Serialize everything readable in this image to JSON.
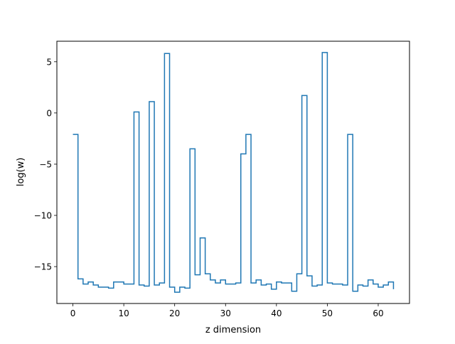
{
  "chart_data": {
    "type": "line",
    "drawstyle": "steps-post",
    "title": "",
    "xlabel": "z dimension",
    "ylabel": "log(w)",
    "xlim": [
      -3.15,
      66.15
    ],
    "ylim": [
      -18.6,
      7.0
    ],
    "xticks": [
      0,
      10,
      20,
      30,
      40,
      50,
      60
    ],
    "yticks": [
      -15,
      -10,
      -5,
      0,
      5
    ],
    "xtick_labels": [
      "0",
      "10",
      "20",
      "30",
      "40",
      "50",
      "60"
    ],
    "ytick_labels": [
      "−15",
      "−10",
      "−5",
      "0",
      "5"
    ],
    "grid": false,
    "line_color": "#1f77b4",
    "x": [
      0,
      1,
      2,
      3,
      4,
      5,
      6,
      7,
      8,
      9,
      10,
      11,
      12,
      13,
      14,
      15,
      16,
      17,
      18,
      19,
      20,
      21,
      22,
      23,
      24,
      25,
      26,
      27,
      28,
      29,
      30,
      31,
      32,
      33,
      34,
      35,
      36,
      37,
      38,
      39,
      40,
      41,
      42,
      43,
      44,
      45,
      46,
      47,
      48,
      49,
      50,
      51,
      52,
      53,
      54,
      55,
      56,
      57,
      58,
      59,
      60,
      61,
      62,
      63
    ],
    "values": [
      -2.1,
      -16.2,
      -16.7,
      -16.5,
      -16.8,
      -17.0,
      -17.0,
      -17.1,
      -16.5,
      -16.5,
      -16.7,
      -16.7,
      0.1,
      -16.8,
      -16.9,
      1.1,
      -16.8,
      -16.6,
      5.8,
      -17.0,
      -17.5,
      -17.0,
      -17.1,
      -3.5,
      -15.8,
      -12.2,
      -15.7,
      -16.3,
      -16.6,
      -16.3,
      -16.7,
      -16.7,
      -16.6,
      -4.0,
      -2.1,
      -16.6,
      -16.3,
      -16.8,
      -16.7,
      -17.2,
      -16.5,
      -16.6,
      -16.6,
      -17.4,
      -15.7,
      1.7,
      -15.9,
      -16.9,
      -16.8,
      5.9,
      -16.6,
      -16.7,
      -16.7,
      -16.8,
      -2.1,
      -17.4,
      -16.8,
      -16.9,
      -16.3,
      -16.7,
      -17.0,
      -16.8,
      -16.5,
      -17.2
    ]
  }
}
